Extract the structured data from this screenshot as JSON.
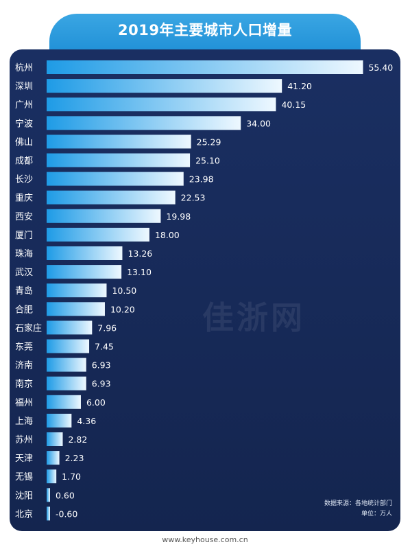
{
  "header": {
    "title": "2019年主要城市人口增量"
  },
  "notes": {
    "source": "数据来源：各地统计部门",
    "unit": "单位：万人"
  },
  "footer": {
    "url": "www.keyhouse.com.cn"
  },
  "watermark": {
    "text": "佳浙网"
  },
  "colors": {
    "panel": "#1a2f62",
    "tab": "#2a9ee0",
    "bar_dark": "#1e9be6",
    "bar_light": "#eef8ff"
  },
  "chart_data": {
    "type": "bar",
    "orientation": "horizontal",
    "title": "2019年主要城市人口增量",
    "unit": "万人",
    "categories": [
      "杭州",
      "深圳",
      "广州",
      "宁波",
      "佛山",
      "成都",
      "长沙",
      "重庆",
      "西安",
      "厦门",
      "珠海",
      "武汉",
      "青岛",
      "合肥",
      "石家庄",
      "东莞",
      "济南",
      "南京",
      "福州",
      "上海",
      "苏州",
      "天津",
      "无锡",
      "沈阳",
      "北京"
    ],
    "values": [
      55.4,
      41.2,
      40.15,
      34.0,
      25.29,
      25.1,
      23.98,
      22.53,
      19.98,
      18.0,
      13.26,
      13.1,
      10.5,
      10.2,
      7.96,
      7.45,
      6.93,
      6.93,
      6.0,
      4.36,
      2.82,
      2.23,
      1.7,
      0.6,
      -0.6
    ],
    "value_labels": [
      "55.40",
      "41.20",
      "40.15",
      "34.00",
      "25.29",
      "25.10",
      "23.98",
      "22.53",
      "19.98",
      "18.00",
      "13.26",
      "13.10",
      "10.50",
      "10.20",
      "7.96",
      "7.45",
      "6.93",
      "6.93",
      "6.00",
      "4.36",
      "2.82",
      "2.23",
      "1.70",
      "0.60",
      "-0.60"
    ],
    "grid": false,
    "legend": "none"
  }
}
